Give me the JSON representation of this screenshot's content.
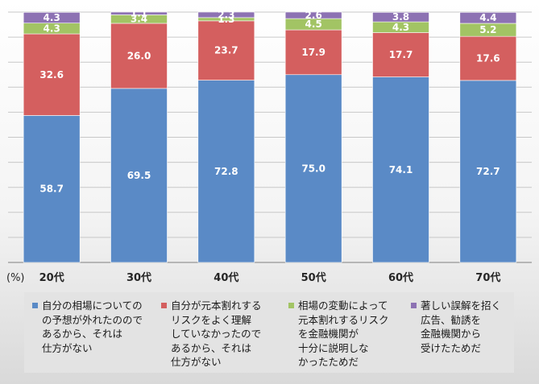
{
  "chart_data": {
    "type": "bar",
    "stacked": true,
    "title": "",
    "ylabel": "(%)",
    "xlabel": "",
    "ylim": [
      0,
      100
    ],
    "grid": true,
    "legend_position": "bottom",
    "categories": [
      "20代",
      "30代",
      "40代",
      "50代",
      "60代",
      "70代"
    ],
    "series": [
      {
        "name": "自分の相場についての予想が外れたのであるから、それは仕方がない",
        "color": "#5a8ac6",
        "values": [
          58.7,
          69.5,
          72.8,
          75.0,
          74.1,
          72.7
        ],
        "labels": [
          "58.7",
          "69.5",
          "72.8",
          "75.0",
          "74.1",
          "72.7"
        ]
      },
      {
        "name": "自分が元本割れするリスクをよく理解していなかったのであるから、それは仕方がない",
        "color": "#d45f5f",
        "values": [
          32.6,
          26.0,
          23.7,
          17.9,
          17.7,
          17.6
        ],
        "labels": [
          "32.6",
          "26.0",
          "23.7",
          "17.9",
          "17.7",
          "17.6"
        ]
      },
      {
        "name": "相場の変動によって元本割れするリスクを金融機関が十分に説明しなかったためだ",
        "color": "#a2c464",
        "values": [
          4.3,
          3.4,
          1.3,
          4.5,
          4.3,
          5.2
        ],
        "labels": [
          "4.3",
          "3.4",
          "1.3",
          "4.5",
          "4.3",
          "5.2"
        ]
      },
      {
        "name": "著しい誤解を招く広告、勧誘を金融機関から受けたためだ",
        "color": "#8d72b3",
        "values": [
          4.3,
          1.1,
          2.3,
          2.6,
          3.8,
          4.4
        ],
        "labels": [
          "4.3",
          "1.1",
          "2.3",
          "2.6",
          "3.8",
          "4.4"
        ]
      }
    ]
  },
  "legend": {
    "items": [
      {
        "text": "自分の相場についての予想が外れたのであるから、それは仕方がない",
        "display": "自分の相場についての\nの予想が外れたのので\nあるから、それは\n仕方がない",
        "color": "#5a8ac6"
      },
      {
        "text": "自分が元本割れするリスクをよく理解していなかったのであるから、それは仕方がない",
        "display": "自分が元本割れする\nリスクをよく理解\nしていなかったので\nあるから、それは\n仕方がない",
        "color": "#d45f5f"
      },
      {
        "text": "相場の変動によって元本割れするリスクを金融機関が十分に説明しなかったためだ",
        "display": "相場の変動によって\n元本割れするリスク\nを金融機関が\n十分に説明しな\nかったためだ",
        "color": "#a2c464"
      },
      {
        "text": "著しい誤解を招く広告、勧誘を金融機関から受けたためだ",
        "display": "著しい誤解を招く\n広告、勧誘を\n金融機関から\n受けたためだ",
        "color": "#8d72b3"
      }
    ]
  }
}
